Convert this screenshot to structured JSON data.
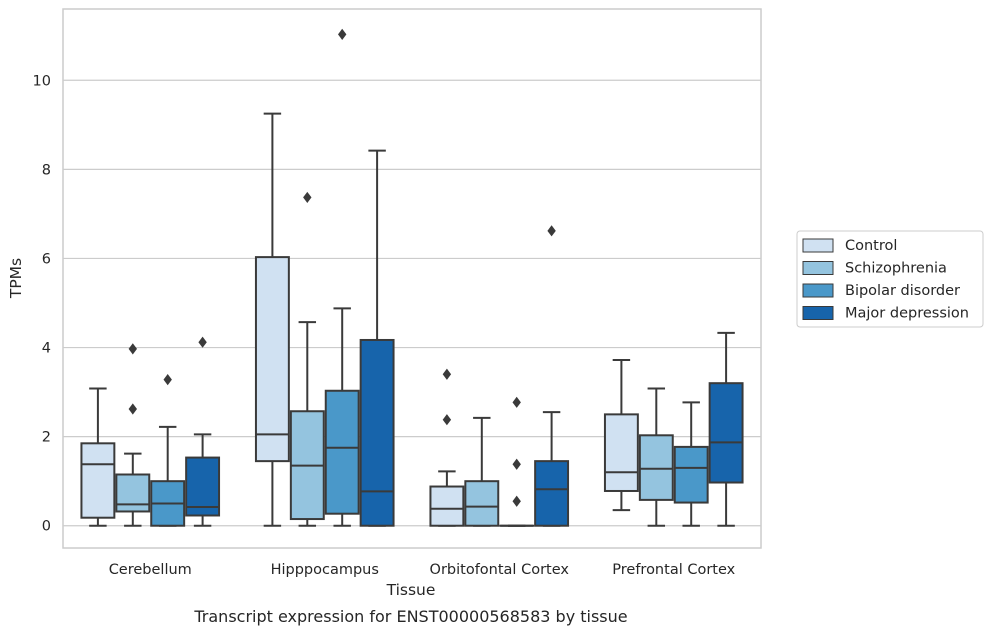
{
  "chart_data": {
    "type": "box",
    "caption": "Transcript expression for ENST00000568583 by tissue",
    "xlabel": "Tissue",
    "ylabel": "TPMs",
    "ylim": [
      -0.5,
      11.6
    ],
    "yticks": [
      0,
      2,
      4,
      6,
      8,
      10
    ],
    "grid": "horizontal",
    "legend_position": "right",
    "categories": [
      "Cerebellum",
      "Hipppocampus",
      "Orbitofontal Cortex",
      "Prefrontal Cortex"
    ],
    "series": [
      {
        "name": "Control",
        "color": "#d0e1f2",
        "boxes": [
          {
            "whislo": 0.0,
            "q1": 0.18,
            "med": 1.38,
            "q3": 1.85,
            "whishi": 3.08,
            "fliers": []
          },
          {
            "whislo": 0.0,
            "q1": 1.45,
            "med": 2.05,
            "q3": 6.03,
            "whishi": 9.25,
            "fliers": []
          },
          {
            "whislo": 0.0,
            "q1": 0.0,
            "med": 0.38,
            "q3": 0.88,
            "whishi": 1.22,
            "fliers": [
              2.38,
              3.4
            ]
          },
          {
            "whislo": 0.35,
            "q1": 0.78,
            "med": 1.2,
            "q3": 2.5,
            "whishi": 3.72,
            "fliers": []
          }
        ]
      },
      {
        "name": "Schizophrenia",
        "color": "#94c4df",
        "boxes": [
          {
            "whislo": 0.0,
            "q1": 0.32,
            "med": 0.48,
            "q3": 1.15,
            "whishi": 1.62,
            "fliers": [
              2.62,
              3.97
            ]
          },
          {
            "whislo": 0.0,
            "q1": 0.15,
            "med": 1.35,
            "q3": 2.57,
            "whishi": 4.57,
            "fliers": [
              7.37
            ]
          },
          {
            "whislo": 0.0,
            "q1": 0.0,
            "med": 0.43,
            "q3": 1.0,
            "whishi": 2.42,
            "fliers": []
          },
          {
            "whislo": 0.0,
            "q1": 0.58,
            "med": 1.28,
            "q3": 2.03,
            "whishi": 3.08,
            "fliers": []
          }
        ]
      },
      {
        "name": "Bipolar disorder",
        "color": "#4a98c9",
        "boxes": [
          {
            "whislo": 0.0,
            "q1": 0.0,
            "med": 0.5,
            "q3": 1.0,
            "whishi": 2.22,
            "fliers": [
              3.28
            ]
          },
          {
            "whislo": 0.0,
            "q1": 0.27,
            "med": 1.75,
            "q3": 3.03,
            "whishi": 4.88,
            "fliers": [
              11.03
            ]
          },
          {
            "whislo": 0.0,
            "q1": 0.0,
            "med": 0.0,
            "q3": 0.0,
            "whishi": 0.0,
            "fliers": [
              0.55,
              1.38,
              2.77
            ]
          },
          {
            "whislo": 0.0,
            "q1": 0.52,
            "med": 1.3,
            "q3": 1.77,
            "whishi": 2.77,
            "fliers": []
          }
        ]
      },
      {
        "name": "Major depression",
        "color": "#1764ab",
        "boxes": [
          {
            "whislo": 0.0,
            "q1": 0.23,
            "med": 0.42,
            "q3": 1.53,
            "whishi": 2.05,
            "fliers": [
              4.12
            ]
          },
          {
            "whislo": 0.0,
            "q1": 0.0,
            "med": 0.77,
            "q3": 4.17,
            "whishi": 8.42,
            "fliers": []
          },
          {
            "whislo": 0.0,
            "q1": 0.0,
            "med": 0.82,
            "q3": 1.45,
            "whishi": 2.55,
            "fliers": [
              6.62
            ]
          },
          {
            "whislo": 0.0,
            "q1": 0.97,
            "med": 1.87,
            "q3": 3.2,
            "whishi": 4.33,
            "fliers": []
          }
        ]
      }
    ]
  }
}
